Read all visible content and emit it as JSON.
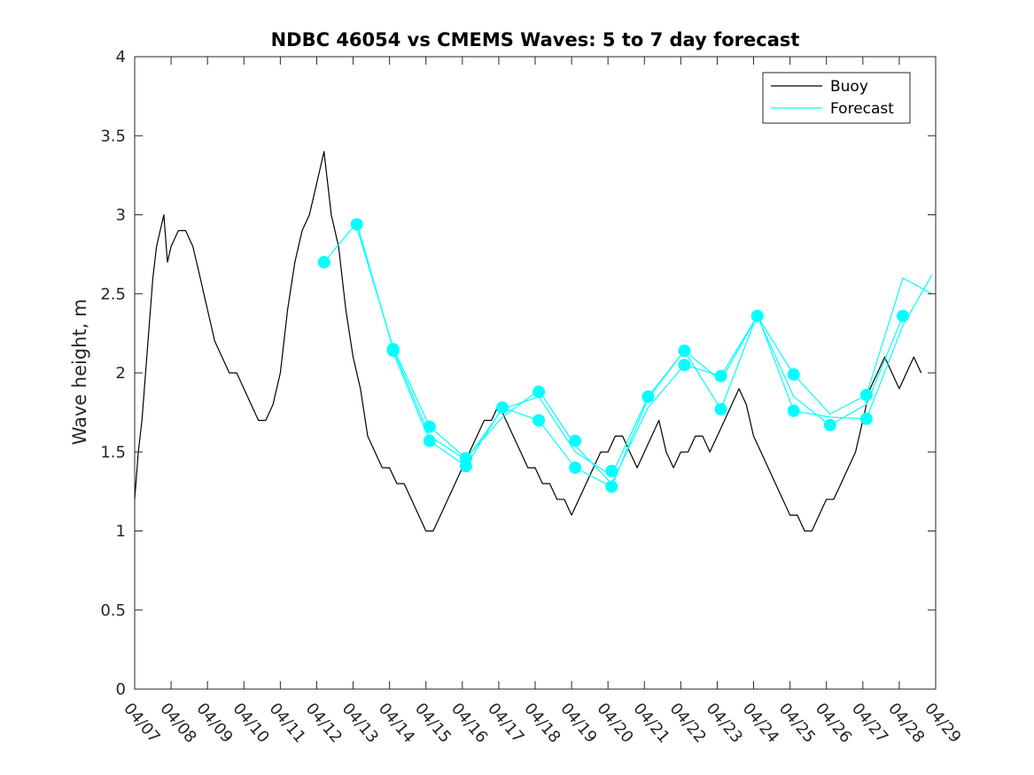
{
  "chart_data": {
    "type": "line",
    "title": "NDBC 46054 vs CMEMS Waves: 5 to 7 day forecast",
    "xlabel": "",
    "ylabel": "Wave height, m",
    "xlim": [
      "04/07",
      "04/29"
    ],
    "ylim": [
      0,
      4
    ],
    "x_tick_labels": [
      "04/07",
      "04/08",
      "04/09",
      "04/10",
      "04/11",
      "04/12",
      "04/13",
      "04/14",
      "04/15",
      "04/16",
      "04/17",
      "04/18",
      "04/19",
      "04/20",
      "04/21",
      "04/22",
      "04/23",
      "04/24",
      "04/25",
      "04/26",
      "04/27",
      "04/28",
      "04/29"
    ],
    "y_tick_labels": [
      "0",
      "0.5",
      "1",
      "1.5",
      "2",
      "2.5",
      "3",
      "3.5",
      "4"
    ],
    "y_ticks": [
      0,
      0.5,
      1,
      1.5,
      2,
      2.5,
      3,
      3.5,
      4
    ],
    "grid": false,
    "legend_position": "top-right",
    "legend": [
      "Buoy",
      "Forecast"
    ],
    "colors": {
      "buoy": "#000000",
      "forecast": "#00ffff",
      "axes": "#262626"
    },
    "series": [
      {
        "name": "Buoy",
        "x": [
          0.0,
          0.1,
          0.2,
          0.3,
          0.4,
          0.5,
          0.6,
          0.7,
          0.8,
          0.9,
          1.0,
          1.2,
          1.4,
          1.6,
          1.8,
          2.0,
          2.2,
          2.4,
          2.6,
          2.8,
          3.0,
          3.2,
          3.4,
          3.6,
          3.8,
          4.0,
          4.2,
          4.4,
          4.6,
          4.8,
          5.0,
          5.2,
          5.4,
          5.6,
          5.8,
          6.0,
          6.2,
          6.4,
          6.6,
          6.8,
          7.0,
          7.2,
          7.4,
          7.6,
          7.8,
          8.0,
          8.2,
          8.4,
          8.6,
          8.8,
          9.0,
          9.2,
          9.4,
          9.6,
          9.8,
          10.0,
          10.2,
          10.4,
          10.6,
          10.8,
          11.0,
          11.2,
          11.4,
          11.6,
          11.8,
          12.0,
          12.2,
          12.4,
          12.6,
          12.8,
          13.0,
          13.2,
          13.4,
          13.6,
          13.8,
          14.0,
          14.2,
          14.4,
          14.6,
          14.8,
          15.0,
          15.2,
          15.4,
          15.6,
          15.8,
          16.0,
          16.2,
          16.4,
          16.6,
          16.8,
          17.0,
          17.2,
          17.4,
          17.6,
          17.8,
          18.0,
          18.2,
          18.4,
          18.6,
          18.8,
          19.0,
          19.2,
          19.4,
          19.6,
          19.8,
          20.0,
          20.2,
          20.4,
          20.6,
          20.8,
          21.0,
          21.2,
          21.4,
          21.6
        ],
        "y": [
          1.2,
          1.5,
          1.7,
          2.0,
          2.3,
          2.6,
          2.8,
          2.9,
          3.0,
          2.7,
          2.8,
          2.9,
          2.9,
          2.8,
          2.6,
          2.4,
          2.2,
          2.1,
          2.0,
          2.0,
          1.9,
          1.8,
          1.7,
          1.7,
          1.8,
          2.0,
          2.4,
          2.7,
          2.9,
          3.0,
          3.2,
          3.4,
          3.0,
          2.8,
          2.4,
          2.1,
          1.9,
          1.6,
          1.5,
          1.4,
          1.4,
          1.3,
          1.3,
          1.2,
          1.1,
          1.0,
          1.0,
          1.1,
          1.2,
          1.3,
          1.4,
          1.5,
          1.6,
          1.7,
          1.7,
          1.8,
          1.7,
          1.6,
          1.5,
          1.4,
          1.4,
          1.3,
          1.3,
          1.2,
          1.2,
          1.1,
          1.2,
          1.3,
          1.4,
          1.5,
          1.5,
          1.6,
          1.6,
          1.5,
          1.4,
          1.5,
          1.6,
          1.7,
          1.5,
          1.4,
          1.5,
          1.5,
          1.6,
          1.6,
          1.5,
          1.6,
          1.7,
          1.8,
          1.9,
          1.8,
          1.6,
          1.5,
          1.4,
          1.3,
          1.2,
          1.1,
          1.1,
          1.0,
          1.0,
          1.1,
          1.2,
          1.2,
          1.3,
          1.4,
          1.5,
          1.7,
          1.9,
          2.0,
          2.1,
          2.0,
          1.9,
          2.0,
          2.1,
          2.0
        ]
      },
      {
        "name": "Forecast",
        "x": [
          5.2,
          6.1,
          7.1,
          8.1,
          9.1,
          10.1,
          11.1,
          12.1,
          13.1,
          14.1,
          15.1,
          16.1,
          17.1,
          18.1,
          19.1,
          20.1,
          21.1
        ],
        "y": [
          2.7,
          2.95,
          2.15,
          1.6,
          1.45,
          1.77,
          1.85,
          1.5,
          1.35,
          1.85,
          2.14,
          1.95,
          2.36,
          1.85,
          1.67,
          1.8,
          2.36
        ]
      },
      {
        "name": "",
        "x": [
          6.1,
          7.1,
          8.1,
          9.1,
          10.1,
          11.1,
          12.1,
          13.1,
          14.1,
          15.1,
          16.1,
          17.1,
          18.1,
          19.1,
          20.1,
          21.1,
          21.9
        ],
        "y": [
          2.92,
          2.16,
          1.66,
          1.46,
          1.72,
          1.89,
          1.54,
          1.3,
          1.78,
          2.05,
          1.98,
          2.36,
          1.99,
          1.74,
          1.86,
          2.6,
          2.5
        ]
      },
      {
        "name": "",
        "x": [
          7.1,
          8.1,
          9.1,
          10.1,
          11.1,
          12.1,
          13.1,
          14.1,
          15.1,
          16.1,
          17.1,
          18.1,
          19.1,
          20.1,
          21.1,
          21.9
        ],
        "y": [
          2.13,
          1.57,
          1.41,
          1.78,
          1.7,
          1.4,
          1.28,
          1.84,
          2.14,
          1.77,
          2.37,
          1.76,
          1.72,
          1.71,
          2.3,
          2.62
        ]
      }
    ],
    "markers": {
      "x": [
        5.2,
        6.1,
        7.1,
        7.1,
        8.1,
        8.1,
        9.1,
        9.1,
        10.1,
        11.1,
        11.1,
        12.1,
        12.1,
        13.1,
        13.1,
        14.1,
        15.1,
        15.1,
        16.1,
        16.1,
        17.1,
        18.1,
        18.1,
        19.1,
        20.1,
        20.1,
        21.1
      ],
      "y": [
        2.7,
        2.94,
        2.15,
        2.14,
        1.66,
        1.57,
        1.46,
        1.41,
        1.78,
        1.88,
        1.7,
        1.57,
        1.4,
        1.38,
        1.28,
        1.85,
        2.14,
        2.05,
        1.98,
        1.77,
        2.36,
        1.99,
        1.76,
        1.67,
        1.86,
        1.71,
        2.36
      ]
    }
  }
}
